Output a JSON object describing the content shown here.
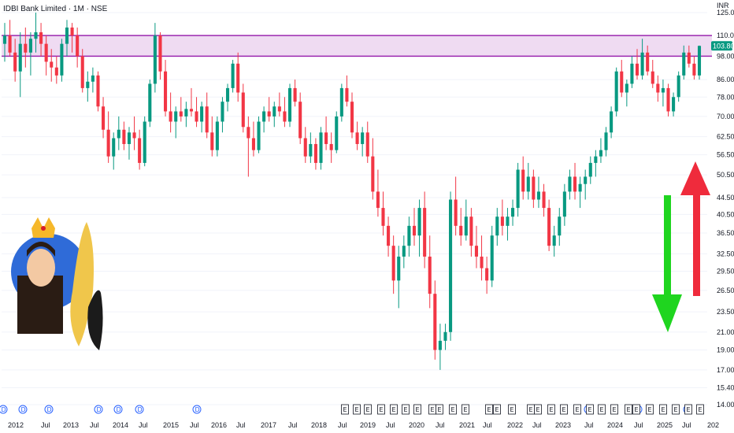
{
  "header": {
    "title": "IDBI Bank Limited · 1M · NSE",
    "currency": "INR"
  },
  "chart_data": {
    "type": "candlestick",
    "y_scale": "log",
    "y_ticks": [
      "125.00",
      "110.00",
      "98.00",
      "86.00",
      "78.00",
      "70.00",
      "62.50",
      "56.50",
      "50.50",
      "44.50",
      "40.50",
      "36.50",
      "32.50",
      "29.50",
      "26.50",
      "23.50",
      "21.00",
      "19.00",
      "17.00",
      "15.40",
      "14.00"
    ],
    "x_ticks": [
      "2012",
      "Jul",
      "2013",
      "Jul",
      "2014",
      "Jul",
      "2015",
      "Jul",
      "2016",
      "Jul",
      "2017",
      "Jul",
      "2018",
      "Jul",
      "2019",
      "Jul",
      "2020",
      "Jul",
      "2021",
      "Jul",
      "2022",
      "Jul",
      "2023",
      "Jul",
      "2024",
      "Jul",
      "2025",
      "Jul",
      "202"
    ],
    "last_price": "103.80",
    "resistance_zone": {
      "low": 98,
      "high": 110
    },
    "colors": {
      "up": "#089981",
      "down": "#f23645",
      "zone_fill": "#e1bee7",
      "zone_line": "#9c27b0",
      "arrow_green": "#1fd51f",
      "arrow_red": "#ef2b3c",
      "dividend": "#2962ff"
    },
    "candles": [
      [
        105,
        118,
        95,
        110
      ],
      [
        110,
        120,
        98,
        100
      ],
      [
        100,
        108,
        85,
        90
      ],
      [
        90,
        112,
        78,
        105
      ],
      [
        105,
        115,
        92,
        100
      ],
      [
        100,
        112,
        88,
        108
      ],
      [
        108,
        125,
        100,
        112
      ],
      [
        112,
        118,
        98,
        105
      ],
      [
        105,
        110,
        88,
        95
      ],
      [
        95,
        102,
        85,
        92
      ],
      [
        92,
        98,
        84,
        88
      ],
      [
        88,
        108,
        85,
        105
      ],
      [
        105,
        120,
        98,
        115
      ],
      [
        115,
        118,
        100,
        110
      ],
      [
        110,
        115,
        92,
        98
      ],
      [
        98,
        102,
        80,
        82
      ],
      [
        82,
        90,
        76,
        85
      ],
      [
        85,
        92,
        80,
        88
      ],
      [
        88,
        90,
        72,
        74
      ],
      [
        74,
        78,
        62,
        65
      ],
      [
        65,
        72,
        54,
        56
      ],
      [
        56,
        64,
        52,
        62
      ],
      [
        62,
        70,
        58,
        65
      ],
      [
        65,
        68,
        58,
        60
      ],
      [
        60,
        66,
        55,
        64
      ],
      [
        64,
        70,
        58,
        62
      ],
      [
        62,
        65,
        52,
        54
      ],
      [
        54,
        70,
        53,
        68
      ],
      [
        68,
        86,
        66,
        84
      ],
      [
        84,
        118,
        80,
        110
      ],
      [
        110,
        112,
        86,
        90
      ],
      [
        90,
        96,
        70,
        72
      ],
      [
        72,
        80,
        64,
        68
      ],
      [
        68,
        74,
        62,
        72
      ],
      [
        72,
        78,
        68,
        70
      ],
      [
        70,
        76,
        66,
        73
      ],
      [
        73,
        82,
        70,
        72
      ],
      [
        72,
        78,
        66,
        68
      ],
      [
        68,
        76,
        64,
        74
      ],
      [
        74,
        80,
        62,
        64
      ],
      [
        64,
        70,
        56,
        58
      ],
      [
        58,
        70,
        56,
        68
      ],
      [
        68,
        78,
        64,
        76
      ],
      [
        76,
        84,
        72,
        82
      ],
      [
        82,
        96,
        80,
        94
      ],
      [
        94,
        100,
        76,
        80
      ],
      [
        80,
        84,
        64,
        66
      ],
      [
        66,
        70,
        50,
        62
      ],
      [
        62,
        68,
        56,
        58
      ],
      [
        58,
        70,
        57,
        68
      ],
      [
        68,
        74,
        64,
        72
      ],
      [
        72,
        78,
        68,
        70
      ],
      [
        70,
        76,
        66,
        74
      ],
      [
        74,
        80,
        70,
        72
      ],
      [
        72,
        78,
        66,
        68
      ],
      [
        68,
        84,
        66,
        82
      ],
      [
        82,
        86,
        74,
        76
      ],
      [
        76,
        80,
        60,
        62
      ],
      [
        62,
        66,
        54,
        56
      ],
      [
        56,
        64,
        54,
        60
      ],
      [
        60,
        62,
        52,
        54
      ],
      [
        54,
        66,
        52,
        64
      ],
      [
        64,
        70,
        58,
        60
      ],
      [
        60,
        64,
        54,
        58
      ],
      [
        58,
        72,
        57,
        70
      ],
      [
        70,
        84,
        68,
        82
      ],
      [
        82,
        88,
        74,
        76
      ],
      [
        76,
        80,
        62,
        64
      ],
      [
        64,
        68,
        58,
        60
      ],
      [
        60,
        66,
        56,
        64
      ],
      [
        64,
        68,
        54,
        56
      ],
      [
        56,
        62,
        44,
        46
      ],
      [
        46,
        52,
        40,
        42
      ],
      [
        42,
        46,
        36,
        38
      ],
      [
        38,
        40,
        32,
        34
      ],
      [
        34,
        36,
        26,
        28
      ],
      [
        28,
        34,
        24,
        32
      ],
      [
        32,
        36,
        30,
        34
      ],
      [
        34,
        40,
        32,
        38
      ],
      [
        38,
        42,
        34,
        36
      ],
      [
        36,
        44,
        32,
        42
      ],
      [
        42,
        46,
        30,
        32
      ],
      [
        32,
        36,
        24,
        26
      ],
      [
        26,
        28,
        18,
        19
      ],
      [
        19,
        22,
        17,
        20
      ],
      [
        20,
        22,
        19,
        21
      ],
      [
        21,
        46,
        20,
        44
      ],
      [
        44,
        50,
        36,
        38
      ],
      [
        38,
        42,
        34,
        36
      ],
      [
        36,
        44,
        35,
        40
      ],
      [
        40,
        42,
        32,
        34
      ],
      [
        34,
        38,
        30,
        32
      ],
      [
        32,
        36,
        28,
        30
      ],
      [
        30,
        32,
        26,
        28
      ],
      [
        28,
        38,
        27,
        36
      ],
      [
        36,
        42,
        34,
        40
      ],
      [
        40,
        44,
        36,
        38
      ],
      [
        38,
        42,
        35,
        40
      ],
      [
        40,
        44,
        38,
        42
      ],
      [
        42,
        54,
        40,
        52
      ],
      [
        52,
        56,
        44,
        46
      ],
      [
        46,
        54,
        44,
        50
      ],
      [
        50,
        52,
        42,
        44
      ],
      [
        44,
        50,
        42,
        46
      ],
      [
        46,
        48,
        40,
        42
      ],
      [
        42,
        44,
        33,
        34
      ],
      [
        34,
        38,
        32,
        36
      ],
      [
        36,
        42,
        34,
        40
      ],
      [
        40,
        48,
        38,
        46
      ],
      [
        46,
        52,
        44,
        50
      ],
      [
        50,
        54,
        44,
        46
      ],
      [
        46,
        50,
        42,
        48
      ],
      [
        48,
        52,
        44,
        50
      ],
      [
        50,
        56,
        48,
        54
      ],
      [
        54,
        58,
        50,
        56
      ],
      [
        56,
        62,
        54,
        58
      ],
      [
        58,
        66,
        56,
        64
      ],
      [
        64,
        74,
        62,
        72
      ],
      [
        72,
        92,
        70,
        90
      ],
      [
        90,
        96,
        78,
        80
      ],
      [
        80,
        86,
        74,
        84
      ],
      [
        84,
        98,
        82,
        94
      ],
      [
        94,
        102,
        86,
        88
      ],
      [
        88,
        108,
        86,
        100
      ],
      [
        100,
        104,
        88,
        90
      ],
      [
        90,
        96,
        82,
        84
      ],
      [
        84,
        88,
        76,
        80
      ],
      [
        80,
        86,
        74,
        82
      ],
      [
        82,
        84,
        70,
        72
      ],
      [
        72,
        80,
        70,
        78
      ],
      [
        78,
        90,
        76,
        88
      ],
      [
        88,
        104,
        86,
        100
      ],
      [
        100,
        104,
        92,
        94
      ],
      [
        94,
        98,
        86,
        88
      ],
      [
        88,
        104,
        86,
        103.8
      ]
    ]
  },
  "badges": {
    "dividend": "D",
    "earnings": "E"
  }
}
